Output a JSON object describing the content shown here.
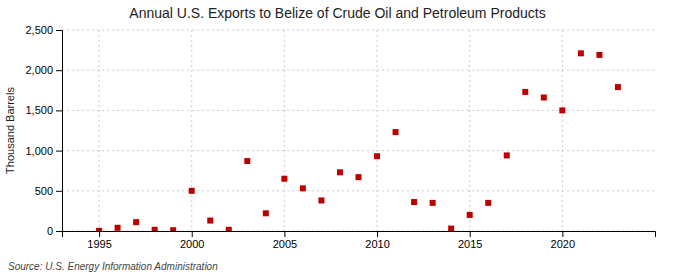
{
  "chart_data": {
    "type": "scatter",
    "title": "Annual U.S. Exports to Belize of Crude Oil and Petroleum Products",
    "ylabel": "Thousand Barrels",
    "annotations": [
      "Source: U.S. Energy Information Administration"
    ],
    "x": [
      1995,
      1996,
      1997,
      1998,
      1999,
      2000,
      2001,
      2002,
      2003,
      2004,
      2005,
      2006,
      2007,
      2008,
      2009,
      2010,
      2011,
      2012,
      2013,
      2014,
      2015,
      2016,
      2017,
      2018,
      2019,
      2020,
      2021,
      2022,
      2023
    ],
    "values": [
      2,
      40,
      110,
      15,
      10,
      500,
      130,
      15,
      870,
      220,
      650,
      530,
      380,
      730,
      670,
      930,
      1230,
      360,
      350,
      30,
      200,
      350,
      940,
      1730,
      1660,
      1500,
      2210,
      2190,
      1790
    ],
    "color": "#bb0000",
    "marker": "square",
    "xlim": [
      1993,
      2025
    ],
    "xticks": [
      1995,
      2000,
      2005,
      2010,
      2015,
      2020
    ],
    "ylim": [
      0,
      2500
    ],
    "yticks": [
      0,
      500,
      {
        "value": 1000,
        "label": "1,000"
      },
      {
        "value": 1500,
        "label": "1,500"
      },
      {
        "value": 2000,
        "label": "2,000"
      },
      {
        "value": 2500,
        "label": "2,500"
      }
    ],
    "grid": true
  }
}
